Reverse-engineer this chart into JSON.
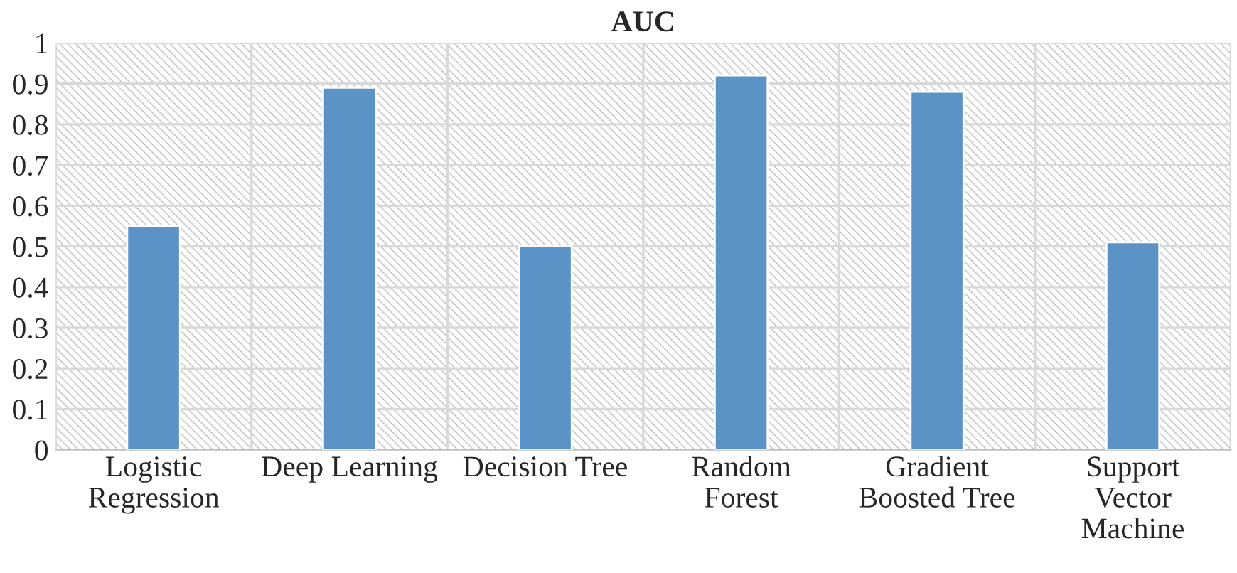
{
  "chart_data": {
    "type": "bar",
    "title": "AUC",
    "categories": [
      "Logistic\nRegression",
      "Deep Learning",
      "Decision Tree",
      "Random\nForest",
      "Gradient\nBoosted Tree",
      "Support\nVector\nMachine"
    ],
    "values": [
      0.55,
      0.89,
      0.5,
      0.92,
      0.88,
      0.51
    ],
    "color": "#5b93c7",
    "ylim": [
      0,
      1
    ],
    "yticks": [
      0,
      0.1,
      0.2,
      0.3,
      0.4,
      0.5,
      0.6,
      0.7,
      0.8,
      0.9,
      {
        "value": 1,
        "label": "1"
      }
    ],
    "grid": true
  }
}
